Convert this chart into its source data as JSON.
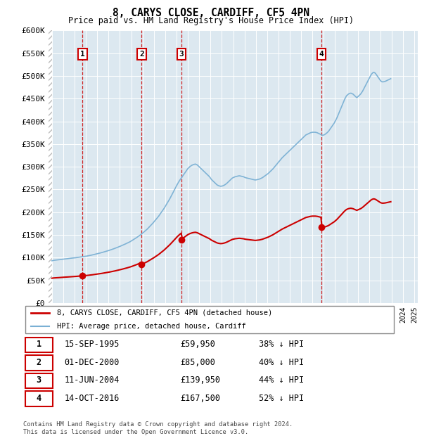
{
  "title": "8, CARYS CLOSE, CARDIFF, CF5 4PN",
  "subtitle": "Price paid vs. HM Land Registry's House Price Index (HPI)",
  "ylim": [
    0,
    600000
  ],
  "yticks": [
    0,
    50000,
    100000,
    150000,
    200000,
    250000,
    300000,
    350000,
    400000,
    450000,
    500000,
    550000,
    600000
  ],
  "ytick_labels": [
    "£0",
    "£50K",
    "£100K",
    "£150K",
    "£200K",
    "£250K",
    "£300K",
    "£350K",
    "£400K",
    "£450K",
    "£500K",
    "£550K",
    "£600K"
  ],
  "xlim_start": 1992.7,
  "xlim_end": 2025.3,
  "transactions": [
    {
      "num": 1,
      "year": 1995.71,
      "price": 59950
    },
    {
      "num": 2,
      "year": 2000.92,
      "price": 85000
    },
    {
      "num": 3,
      "year": 2004.44,
      "price": 139950
    },
    {
      "num": 4,
      "year": 2016.79,
      "price": 167500
    }
  ],
  "plot_bg": "#dce8f0",
  "hpi_color": "#7ab0d4",
  "price_color": "#cc0000",
  "legend_label_price": "8, CARYS CLOSE, CARDIFF, CF5 4PN (detached house)",
  "legend_label_hpi": "HPI: Average price, detached house, Cardiff",
  "footer": "Contains HM Land Registry data © Crown copyright and database right 2024.\nThis data is licensed under the Open Government Licence v3.0.",
  "table_rows": [
    [
      "1",
      "15-SEP-1995",
      "£59,950",
      "38% ↓ HPI"
    ],
    [
      "2",
      "01-DEC-2000",
      "£85,000",
      "40% ↓ HPI"
    ],
    [
      "3",
      "11-JUN-2004",
      "£139,950",
      "44% ↓ HPI"
    ],
    [
      "4",
      "14-OCT-2016",
      "£167,500",
      "52% ↓ HPI"
    ]
  ],
  "hpi_base_monthly": [
    93000,
    93500,
    94000,
    94200,
    94500,
    94800,
    95000,
    95200,
    95500,
    95700,
    96000,
    96200,
    96500,
    96800,
    97000,
    97200,
    97500,
    97800,
    98000,
    98300,
    98600,
    98800,
    99000,
    99200,
    99500,
    99700,
    100000,
    100300,
    100600,
    100900,
    101200,
    101500,
    101800,
    102100,
    102400,
    102700,
    103000,
    103400,
    103800,
    104200,
    104600,
    105000,
    105500,
    106000,
    106500,
    107000,
    107500,
    108000,
    108500,
    109000,
    109500,
    110000,
    110600,
    111200,
    111800,
    112400,
    113000,
    113600,
    114200,
    114800,
    115500,
    116200,
    116900,
    117600,
    118300,
    119000,
    119800,
    120600,
    121400,
    122200,
    123000,
    123800,
    124700,
    125600,
    126500,
    127400,
    128300,
    129200,
    130200,
    131200,
    132200,
    133200,
    134200,
    135200,
    136500,
    137800,
    139100,
    140400,
    141700,
    143000,
    144500,
    146000,
    147500,
    149000,
    150500,
    152000,
    153800,
    155600,
    157400,
    159200,
    161000,
    162800,
    165000,
    167200,
    169400,
    171600,
    173800,
    176000,
    178500,
    181000,
    183500,
    186000,
    188500,
    191000,
    194000,
    197000,
    200000,
    203000,
    206000,
    209000,
    212500,
    216000,
    219500,
    223000,
    226500,
    230000,
    234000,
    238000,
    242000,
    246000,
    250000,
    254000,
    258000,
    262000,
    265500,
    269000,
    272000,
    275000,
    278000,
    281000,
    284000,
    287000,
    290000,
    293000,
    296000,
    298000,
    300000,
    301500,
    303000,
    304000,
    305000,
    305500,
    306000,
    305000,
    304000,
    302000,
    300000,
    298000,
    296000,
    294000,
    292000,
    290000,
    288000,
    286000,
    284000,
    282000,
    280000,
    278000,
    275000,
    272000,
    270000,
    268000,
    266000,
    264000,
    262000,
    260000,
    259000,
    258000,
    257500,
    257000,
    257500,
    258000,
    259000,
    260000,
    261500,
    263000,
    265000,
    267000,
    269000,
    271000,
    273000,
    275000,
    276000,
    277000,
    278000,
    278500,
    279000,
    279500,
    280000,
    280000,
    279500,
    279000,
    278500,
    278000,
    277000,
    276000,
    275500,
    275000,
    274500,
    274000,
    273500,
    273000,
    272500,
    272000,
    271500,
    271000,
    271000,
    271500,
    272000,
    272500,
    273000,
    274000,
    275000,
    276000,
    277500,
    279000,
    280500,
    282000,
    283500,
    285000,
    287000,
    289000,
    291000,
    293000,
    295000,
    297500,
    300000,
    302500,
    305000,
    307500,
    310000,
    312500,
    315000,
    317500,
    320000,
    322000,
    324000,
    326000,
    328000,
    330000,
    332000,
    334000,
    336000,
    338000,
    340000,
    342000,
    344000,
    346000,
    348000,
    350000,
    352000,
    354000,
    356000,
    358000,
    360000,
    362000,
    364000,
    366000,
    368000,
    370000,
    371000,
    372000,
    373000,
    374000,
    375000,
    375500,
    376000,
    376000,
    376000,
    376000,
    375500,
    375000,
    374000,
    373000,
    372000,
    371000,
    370000,
    369000,
    370000,
    371000,
    372500,
    374000,
    376000,
    378000,
    381000,
    384000,
    387000,
    390000,
    393000,
    396000,
    400000,
    404000,
    408000,
    413000,
    418000,
    423000,
    428000,
    433000,
    438000,
    443000,
    448000,
    452000,
    456000,
    458000,
    460000,
    461000,
    462000,
    462000,
    461000,
    460000,
    458000,
    456000,
    454000,
    452000,
    454000,
    456000,
    458000,
    460000,
    463000,
    466000,
    470000,
    474000,
    478000,
    482000,
    486000,
    490000,
    494000,
    498000,
    502000,
    505000,
    507000,
    508000,
    507000,
    505000,
    502000,
    499000,
    496000,
    493000,
    490000,
    488000,
    487000,
    487000,
    487500,
    488000,
    489000,
    490000,
    491000,
    492000,
    493000,
    494000
  ]
}
